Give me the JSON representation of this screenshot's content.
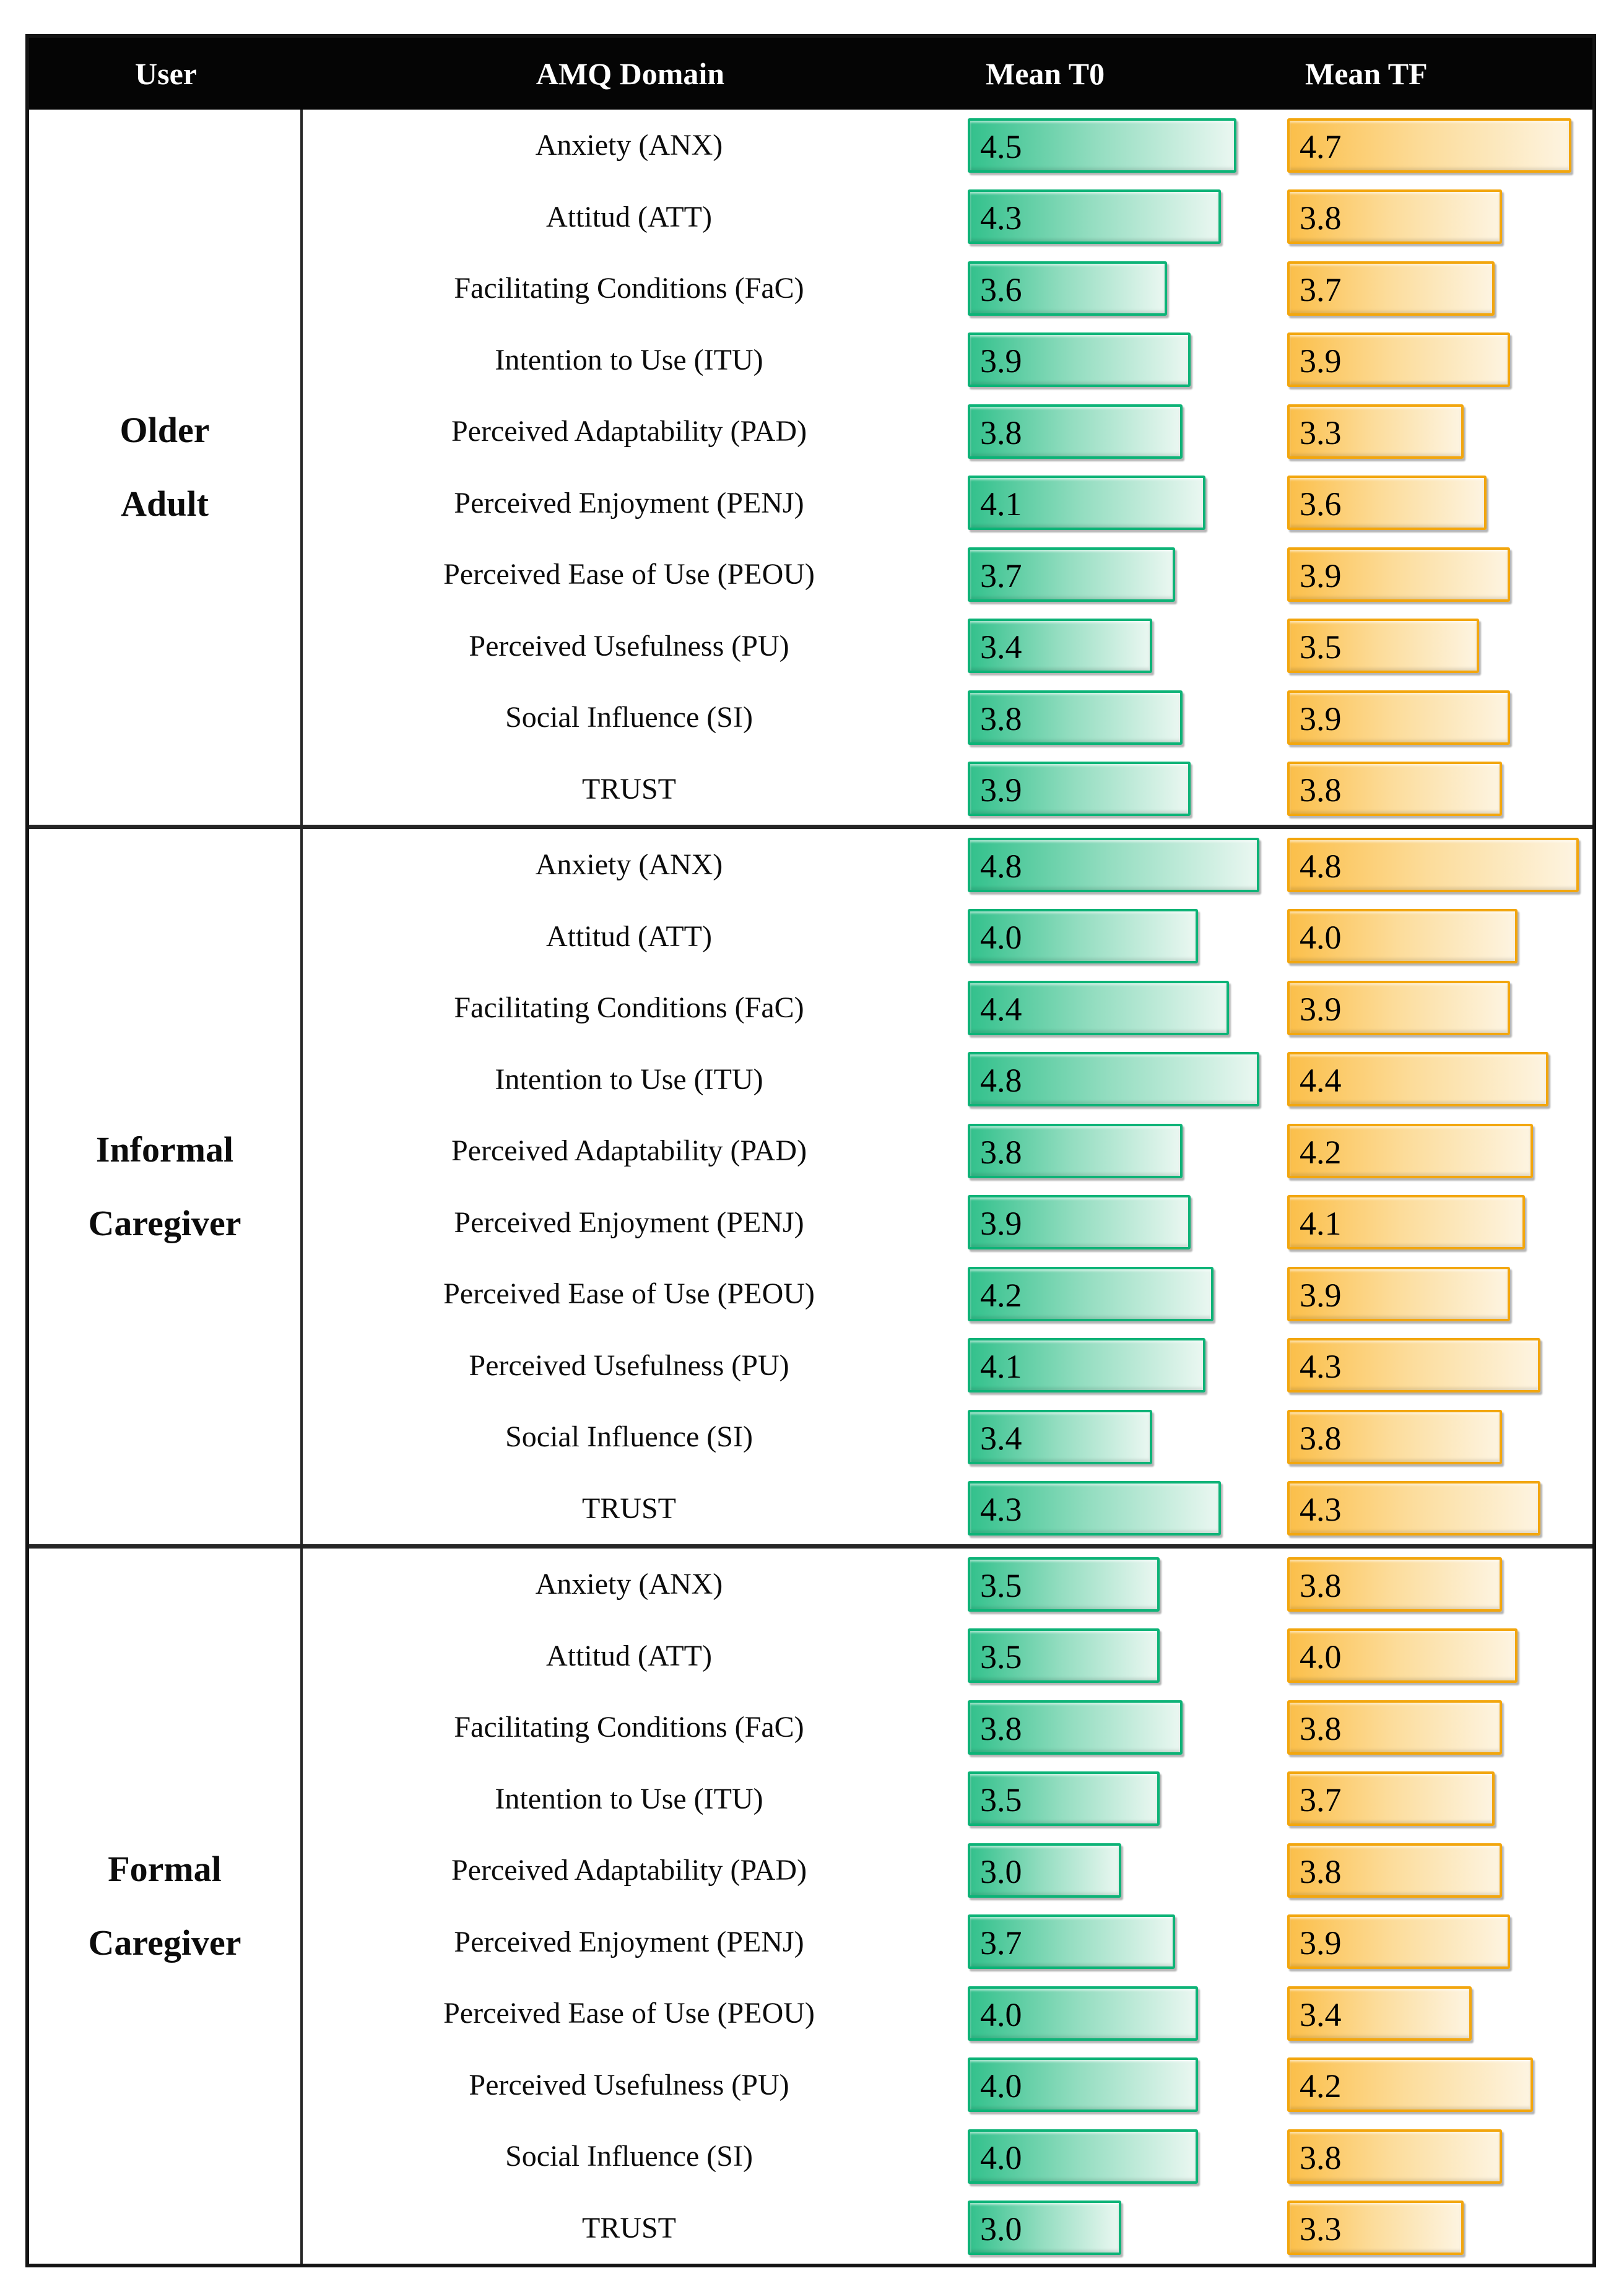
{
  "header": {
    "user": "User",
    "domain": "AMQ Domain",
    "t0": "Mean T0",
    "tf": "Mean TF"
  },
  "colors": {
    "t0_bar_start": "#33c18c",
    "t0_bar_end": "#eaf7f1",
    "t0_bar_border": "#0db377",
    "tf_bar_start": "#fbbf4a",
    "tf_bar_end": "#fdf4e1",
    "tf_bar_border": "#f2a60e",
    "header_bg": "#050505",
    "header_text": "#ffffff"
  },
  "chart_data": {
    "type": "bar",
    "orientation": "horizontal",
    "value_axis": {
      "min": 1,
      "max": 5
    },
    "series": [
      "Mean T0",
      "Mean TF"
    ],
    "groups": [
      {
        "user": "Older Adult",
        "user_lines": [
          "Older",
          "Adult"
        ],
        "rows": [
          {
            "domain": "Anxiety (ANX)",
            "t0": 4.5,
            "tf": 4.7
          },
          {
            "domain": "Attitud (ATT)",
            "t0": 4.3,
            "tf": 3.8
          },
          {
            "domain": "Facilitating Conditions (FaC)",
            "t0": 3.6,
            "tf": 3.7
          },
          {
            "domain": "Intention to Use (ITU)",
            "t0": 3.9,
            "tf": 3.9
          },
          {
            "domain": "Perceived Adaptability (PAD)",
            "t0": 3.8,
            "tf": 3.3
          },
          {
            "domain": "Perceived Enjoyment (PENJ)",
            "t0": 4.1,
            "tf": 3.6
          },
          {
            "domain": "Perceived Ease of Use (PEOU)",
            "t0": 3.7,
            "tf": 3.9
          },
          {
            "domain": "Perceived Usefulness (PU)",
            "t0": 3.4,
            "tf": 3.5
          },
          {
            "domain": "Social Influence (SI)",
            "t0": 3.8,
            "tf": 3.9
          },
          {
            "domain": "TRUST",
            "t0": 3.9,
            "tf": 3.8
          }
        ]
      },
      {
        "user": "Informal Caregiver",
        "user_lines": [
          "Informal",
          "Caregiver"
        ],
        "rows": [
          {
            "domain": "Anxiety (ANX)",
            "t0": 4.8,
            "tf": 4.8
          },
          {
            "domain": "Attitud (ATT)",
            "t0": 4.0,
            "tf": 4.0
          },
          {
            "domain": "Facilitating Conditions (FaC)",
            "t0": 4.4,
            "tf": 3.9
          },
          {
            "domain": "Intention to Use (ITU)",
            "t0": 4.8,
            "tf": 4.4
          },
          {
            "domain": "Perceived Adaptability (PAD)",
            "t0": 3.8,
            "tf": 4.2
          },
          {
            "domain": "Perceived Enjoyment (PENJ)",
            "t0": 3.9,
            "tf": 4.1
          },
          {
            "domain": "Perceived Ease of Use (PEOU)",
            "t0": 4.2,
            "tf": 3.9
          },
          {
            "domain": "Perceived Usefulness (PU)",
            "t0": 4.1,
            "tf": 4.3
          },
          {
            "domain": "Social Influence (SI)",
            "t0": 3.4,
            "tf": 3.8
          },
          {
            "domain": "TRUST",
            "t0": 4.3,
            "tf": 4.3
          }
        ]
      },
      {
        "user": "Formal Caregiver",
        "user_lines": [
          "Formal",
          "Caregiver"
        ],
        "rows": [
          {
            "domain": "Anxiety (ANX)",
            "t0": 3.5,
            "tf": 3.8
          },
          {
            "domain": "Attitud (ATT)",
            "t0": 3.5,
            "tf": 4.0
          },
          {
            "domain": "Facilitating Conditions (FaC)",
            "t0": 3.8,
            "tf": 3.8
          },
          {
            "domain": "Intention to Use (ITU)",
            "t0": 3.5,
            "tf": 3.7
          },
          {
            "domain": "Perceived Adaptability (PAD)",
            "t0": 3.0,
            "tf": 3.8
          },
          {
            "domain": "Perceived Enjoyment (PENJ)",
            "t0": 3.7,
            "tf": 3.9
          },
          {
            "domain": "Perceived Ease of Use (PEOU)",
            "t0": 4.0,
            "tf": 3.4
          },
          {
            "domain": "Perceived Usefulness (PU)",
            "t0": 4.0,
            "tf": 4.2
          },
          {
            "domain": "Social Influence (SI)",
            "t0": 4.0,
            "tf": 3.8
          },
          {
            "domain": "TRUST",
            "t0": 3.0,
            "tf": 3.3
          }
        ]
      }
    ]
  }
}
